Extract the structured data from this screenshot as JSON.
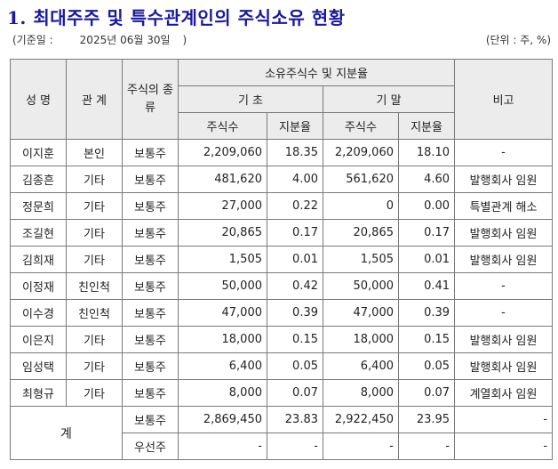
{
  "title": "1. 최대주주 및 특수관계인의 주식소유 현황",
  "meta": {
    "open": "(기준일 :",
    "date": "2025년 06월 30일",
    "close": ")",
    "unit": "(단위 : 주, %)"
  },
  "headers": {
    "name": "성 명",
    "relation": "관 계",
    "stock_kind": "주식의 종류",
    "ownership": "소유주식수 및 지분율",
    "begin": "기 초",
    "end": "기 말",
    "shares": "주식수",
    "ratio": "지분율",
    "remark": "비고"
  },
  "rows": [
    {
      "name": "이지훈",
      "relation": "본인",
      "kind": "보통주",
      "begin_shares": "2,209,060",
      "begin_ratio": "18.35",
      "end_shares": "2,209,060",
      "end_ratio": "18.10",
      "remark": "-"
    },
    {
      "name": "김종흔",
      "relation": "기타",
      "kind": "보통주",
      "begin_shares": "481,620",
      "begin_ratio": "4.00",
      "end_shares": "561,620",
      "end_ratio": "4.60",
      "remark": "발행회사 임원"
    },
    {
      "name": "정문희",
      "relation": "기타",
      "kind": "보통주",
      "begin_shares": "27,000",
      "begin_ratio": "0.22",
      "end_shares": "0",
      "end_ratio": "0.00",
      "remark": "특별관계 해소"
    },
    {
      "name": "조길현",
      "relation": "기타",
      "kind": "보통주",
      "begin_shares": "20,865",
      "begin_ratio": "0.17",
      "end_shares": "20,865",
      "end_ratio": "0.17",
      "remark": "발행회사 임원"
    },
    {
      "name": "김희재",
      "relation": "기타",
      "kind": "보통주",
      "begin_shares": "1,505",
      "begin_ratio": "0.01",
      "end_shares": "1,505",
      "end_ratio": "0.01",
      "remark": "발행회사 임원"
    },
    {
      "name": "이정재",
      "relation": "친인척",
      "kind": "보통주",
      "begin_shares": "50,000",
      "begin_ratio": "0.42",
      "end_shares": "50,000",
      "end_ratio": "0.41",
      "remark": "-"
    },
    {
      "name": "이수경",
      "relation": "친인척",
      "kind": "보통주",
      "begin_shares": "47,000",
      "begin_ratio": "0.39",
      "end_shares": "47,000",
      "end_ratio": "0.39",
      "remark": "-"
    },
    {
      "name": "이은지",
      "relation": "기타",
      "kind": "보통주",
      "begin_shares": "18,000",
      "begin_ratio": "0.15",
      "end_shares": "18,000",
      "end_ratio": "0.15",
      "remark": "발행회사 임원"
    },
    {
      "name": "임성택",
      "relation": "기타",
      "kind": "보통주",
      "begin_shares": "6,400",
      "begin_ratio": "0.05",
      "end_shares": "6,400",
      "end_ratio": "0.05",
      "remark": "발행회사 임원"
    },
    {
      "name": "최형규",
      "relation": "기타",
      "kind": "보통주",
      "begin_shares": "8,000",
      "begin_ratio": "0.07",
      "end_shares": "8,000",
      "end_ratio": "0.07",
      "remark": "계열회사 임원"
    }
  ],
  "total": {
    "label": "계",
    "rows": [
      {
        "kind": "보통주",
        "begin_shares": "2,869,450",
        "begin_ratio": "23.83",
        "end_shares": "2,922,450",
        "end_ratio": "23.95",
        "remark": "-"
      },
      {
        "kind": "우선주",
        "begin_shares": "-",
        "begin_ratio": "-",
        "end_shares": "-",
        "end_ratio": "-",
        "remark": "-"
      }
    ]
  }
}
